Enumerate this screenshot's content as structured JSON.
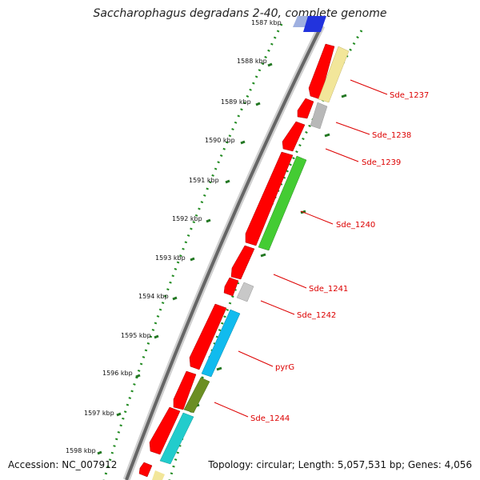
{
  "map": {
    "title": "Saccharophagus degradans 2-40, complete genome",
    "accession": "Accession: NC_007912",
    "topology": "Topology: circular; Length: 5,057,531 bp; Genes: 4,056",
    "tick_labels": [
      "1587 kbp",
      "1588 kbp",
      "1589 kbp",
      "1590 kbp",
      "1591 kbp",
      "1592 kbp",
      "1593 kbp",
      "1594 kbp",
      "1595 kbp",
      "1596 kbp",
      "1597 kbp",
      "1598 kbp"
    ],
    "colors": {
      "cds": "#ff0000",
      "dotted_ring": "#228b22",
      "backbone": "#888888",
      "label": "#dd0000",
      "yellow": "#f2e69a",
      "gray": "#bbbbbb",
      "green": "#44cc33",
      "light_gray": "#cccccc",
      "cyan": "#11bbee",
      "olive": "#6b8e23",
      "teal": "#22cccc",
      "blue": "#2233dd",
      "light_blue": "#8899dd"
    },
    "gene_labels": [
      "Sde_1237",
      "Sde_1238",
      "Sde_1239",
      "Sde_1240",
      "Sde_1241",
      "Sde_1242",
      "pyrG",
      "Sde_1244"
    ]
  }
}
